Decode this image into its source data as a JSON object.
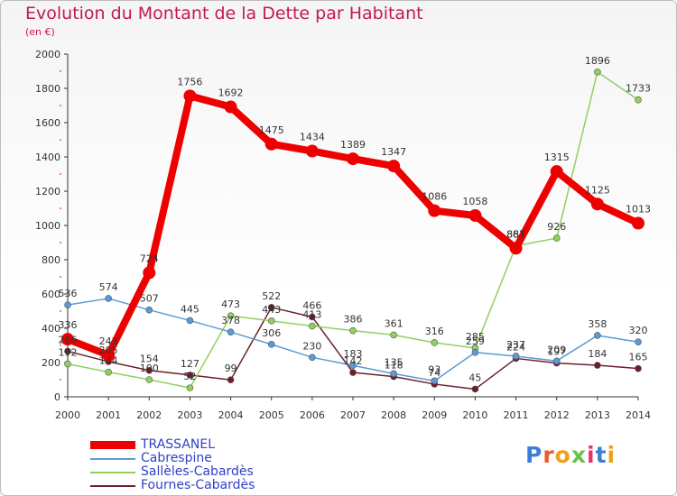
{
  "page": {
    "title": "Evolution du Montant de la Dette par Habitant",
    "subtitle": "(en €)",
    "logo": "Proxiti"
  },
  "colors": {
    "title": "#c2185b",
    "legend_text": "#2f41c7",
    "axis": "#333333",
    "grid_dash": "#d01010"
  },
  "chart_data": {
    "type": "line",
    "title": "Evolution du Montant de la Dette par Habitant",
    "ylabel": "(en €)",
    "xlabel": "",
    "ylim": [
      0,
      2000
    ],
    "yticks": [
      0,
      200,
      400,
      600,
      800,
      1000,
      1200,
      1400,
      1600,
      1800,
      2000
    ],
    "x": [
      "2000",
      "2001",
      "2002",
      "2003",
      "2004",
      "2005",
      "2006",
      "2007",
      "2008",
      "2009",
      "2010",
      "2011",
      "2012",
      "2013",
      "2014"
    ],
    "legend_position": "bottom-left",
    "series": [
      {
        "name": "TRASSANEL",
        "color": "#ee0000",
        "values": [
          336,
          243,
          724,
          1756,
          1692,
          1475,
          1434,
          1389,
          1347,
          1086,
          1058,
          867,
          1315,
          1125,
          1013
        ]
      },
      {
        "name": "Cabrespine",
        "color": "#5b9bd5",
        "values": [
          536,
          574,
          507,
          445,
          378,
          306,
          230,
          183,
          135,
          93,
          259,
          237,
          209,
          358,
          320
        ]
      },
      {
        "name": "Sallèles-Cabardès",
        "color": "#8fd15c",
        "values": [
          192,
          144,
          100,
          52,
          473,
          443,
          413,
          386,
          361,
          316,
          285,
          881,
          926,
          1896,
          1733
        ]
      },
      {
        "name": "Fournes-Cabardès",
        "color": "#6b1f2a",
        "values": [
          266,
          205,
          154,
          127,
          99,
          522,
          466,
          142,
          118,
          74,
          45,
          224,
          197,
          184,
          165
        ]
      }
    ]
  }
}
